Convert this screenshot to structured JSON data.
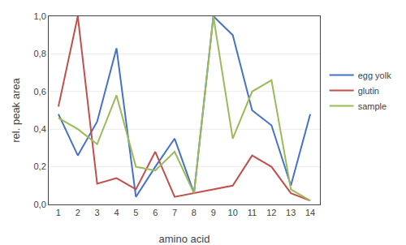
{
  "chart_data": {
    "type": "line",
    "xlabel": "amino acid",
    "ylabel": "rel. peak area",
    "x": [
      1,
      2,
      3,
      4,
      5,
      6,
      7,
      8,
      9,
      10,
      11,
      12,
      13,
      14
    ],
    "series": [
      {
        "name": "egg yolk",
        "color": "#4472C4",
        "values": [
          0.48,
          0.26,
          0.44,
          0.83,
          0.04,
          0.2,
          0.35,
          0.06,
          1.0,
          0.9,
          0.5,
          0.42,
          0.1,
          0.48
        ]
      },
      {
        "name": "glutin",
        "color": "#C0504D",
        "values": [
          0.52,
          1.0,
          0.11,
          0.14,
          0.08,
          0.28,
          0.04,
          0.06,
          0.08,
          0.1,
          0.26,
          0.2,
          0.06,
          0.02
        ]
      },
      {
        "name": "sample",
        "color": "#9BBB59",
        "values": [
          0.46,
          0.4,
          0.32,
          0.58,
          0.2,
          0.18,
          0.28,
          0.06,
          1.0,
          0.35,
          0.6,
          0.66,
          0.08,
          0.02
        ]
      }
    ],
    "xlim": [
      0.5,
      14.5
    ],
    "xticks": [
      1,
      2,
      3,
      4,
      5,
      6,
      7,
      8,
      9,
      10,
      11,
      12,
      13,
      14
    ],
    "ylim": [
      0.0,
      1.0
    ],
    "yticks": [
      {
        "value": 0.0,
        "label": "0,0"
      },
      {
        "value": 0.2,
        "label": "0,2"
      },
      {
        "value": 0.4,
        "label": "0,4"
      },
      {
        "value": 0.6,
        "label": "0,6"
      },
      {
        "value": 0.8,
        "label": "0,8"
      },
      {
        "value": 1.0,
        "label": "1,0"
      }
    ],
    "grid": true,
    "legend": "right"
  }
}
